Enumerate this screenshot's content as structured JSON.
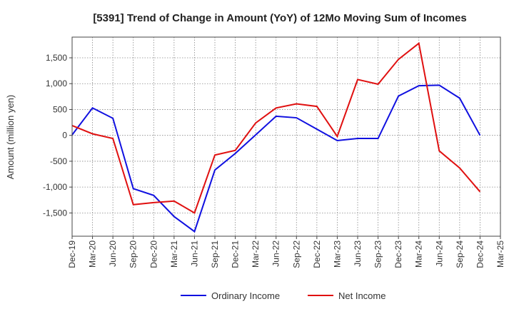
{
  "chart_data": {
    "type": "line",
    "title": "[5391]  Trend of Change in Amount (YoY) of 12Mo Moving Sum of Incomes",
    "xlabel": "",
    "ylabel": "Amount (million yen)",
    "ylim": [
      -1950,
      1900
    ],
    "yticks": [
      -1500,
      -1000,
      -500,
      0,
      500,
      1000,
      1500
    ],
    "ytick_labels": [
      "-1,500",
      "-1,000",
      "-500",
      "0",
      "500",
      "1,000",
      "1,500"
    ],
    "categories": [
      "Dec-19",
      "Mar-20",
      "Jun-20",
      "Sep-20",
      "Dec-20",
      "Mar-21",
      "Jun-21",
      "Sep-21",
      "Dec-21",
      "Mar-22",
      "Jun-22",
      "Sep-22",
      "Dec-22",
      "Mar-23",
      "Jun-23",
      "Sep-23",
      "Dec-23",
      "Mar-24",
      "Jun-24",
      "Sep-24",
      "Dec-24",
      "Mar-25"
    ],
    "grid": true,
    "legend_position": "bottom-center",
    "series": [
      {
        "name": "Ordinary Income",
        "color": "#1010e0",
        "values": [
          10,
          530,
          330,
          -1030,
          -1160,
          -1570,
          -1860,
          -670,
          -350,
          10,
          370,
          340,
          120,
          -100,
          -60,
          -60,
          760,
          960,
          970,
          720,
          0,
          null
        ]
      },
      {
        "name": "Net Income",
        "color": "#e01010",
        "values": [
          190,
          30,
          -60,
          -1340,
          -1300,
          -1270,
          -1500,
          -380,
          -290,
          240,
          530,
          610,
          560,
          -20,
          1080,
          990,
          1470,
          1780,
          -300,
          -630,
          -1090,
          null
        ]
      }
    ]
  }
}
